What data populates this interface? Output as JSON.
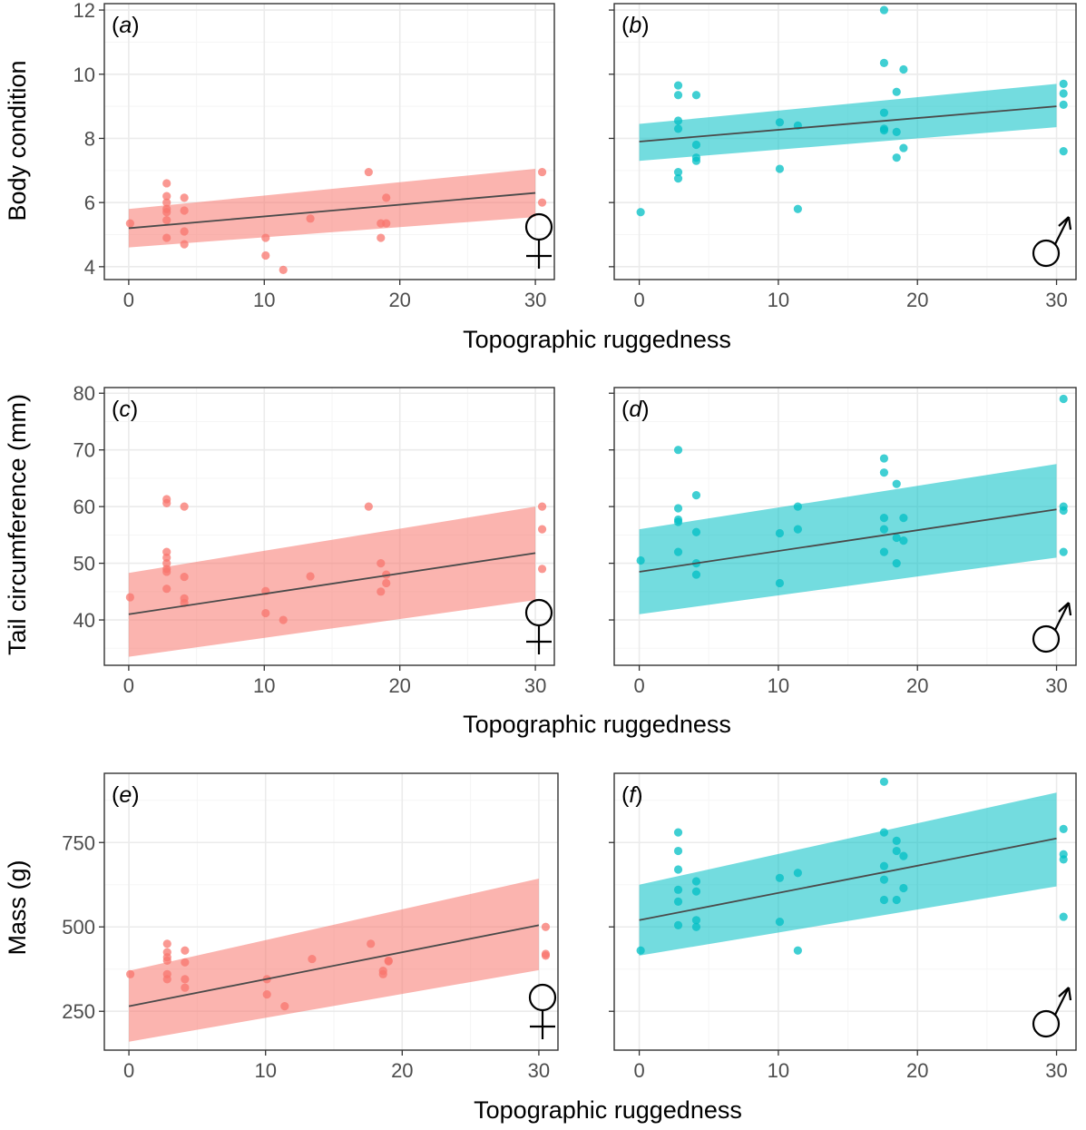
{
  "colors": {
    "female": "#F8766D",
    "male": "#00BFC4",
    "line": "#4a4a4a",
    "grid_major": "#ebebeb",
    "grid_minor": "#f5f5f5",
    "border": "#333333"
  },
  "rows": [
    {
      "ylabel": "Body condition",
      "xlabel": "Topographic ruggedness"
    },
    {
      "ylabel": "Tail circumference (mm)",
      "xlabel": "Topographic ruggedness"
    },
    {
      "ylabel": "Mass (g)",
      "xlabel": "Topographic ruggedness"
    }
  ],
  "chart_data": [
    {
      "type": "scatter",
      "panel": "a",
      "label_letter": "a",
      "sex": "female",
      "sex_symbol": "female-symbol-icon",
      "xlim": [
        -1.8,
        31.4
      ],
      "ylim": [
        3.6,
        12.2
      ],
      "xticks": [
        0,
        10,
        20,
        30
      ],
      "yticks": [
        4,
        6,
        8,
        10,
        12
      ],
      "points": [
        [
          0.1,
          5.35
        ],
        [
          2.8,
          6.6
        ],
        [
          2.8,
          6.2
        ],
        [
          2.8,
          6.0
        ],
        [
          2.8,
          5.8
        ],
        [
          2.8,
          5.7
        ],
        [
          2.8,
          5.45
        ],
        [
          2.8,
          4.9
        ],
        [
          4.1,
          6.15
        ],
        [
          4.1,
          5.75
        ],
        [
          4.1,
          5.1
        ],
        [
          4.1,
          4.7
        ],
        [
          10.1,
          4.9
        ],
        [
          10.1,
          4.35
        ],
        [
          11.4,
          3.9
        ],
        [
          13.4,
          5.5
        ],
        [
          17.7,
          6.95
        ],
        [
          18.6,
          4.9
        ],
        [
          18.6,
          5.35
        ],
        [
          19.0,
          6.15
        ],
        [
          19.0,
          5.35
        ],
        [
          30.5,
          6.95
        ],
        [
          30.5,
          6.0
        ]
      ],
      "fit": {
        "x": [
          0,
          30
        ],
        "y": [
          5.2,
          6.3
        ]
      },
      "band": {
        "lower": [
          4.6,
          5.55
        ],
        "upper": [
          5.8,
          7.05
        ]
      }
    },
    {
      "type": "scatter",
      "panel": "b",
      "label_letter": "b",
      "sex": "male",
      "sex_symbol": "male-symbol-icon",
      "xlim": [
        -1.8,
        31.4
      ],
      "ylim": [
        3.6,
        12.2
      ],
      "xticks": [
        0,
        10,
        20,
        30
      ],
      "yticks": [
        4,
        6,
        8,
        10,
        12
      ],
      "points": [
        [
          0.1,
          5.7
        ],
        [
          2.8,
          9.65
        ],
        [
          2.8,
          9.35
        ],
        [
          2.8,
          8.55
        ],
        [
          2.8,
          8.3
        ],
        [
          2.8,
          6.95
        ],
        [
          2.8,
          6.75
        ],
        [
          4.1,
          9.35
        ],
        [
          4.1,
          7.8
        ],
        [
          4.1,
          7.4
        ],
        [
          4.1,
          7.3
        ],
        [
          10.1,
          8.5
        ],
        [
          10.1,
          7.05
        ],
        [
          11.4,
          8.4
        ],
        [
          11.4,
          5.8
        ],
        [
          17.6,
          12.0
        ],
        [
          17.6,
          10.35
        ],
        [
          17.6,
          8.8
        ],
        [
          17.6,
          8.3
        ],
        [
          17.6,
          8.25
        ],
        [
          18.5,
          9.45
        ],
        [
          18.5,
          8.2
        ],
        [
          18.5,
          7.4
        ],
        [
          19.0,
          10.15
        ],
        [
          19.0,
          7.7
        ],
        [
          30.5,
          9.7
        ],
        [
          30.5,
          9.4
        ],
        [
          30.5,
          9.05
        ],
        [
          30.5,
          7.6
        ]
      ],
      "fit": {
        "x": [
          0,
          30
        ],
        "y": [
          7.9,
          9.0
        ]
      },
      "band": {
        "lower": [
          7.3,
          8.35
        ],
        "upper": [
          8.45,
          9.7
        ]
      }
    },
    {
      "type": "scatter",
      "panel": "c",
      "label_letter": "c",
      "sex": "female",
      "sex_symbol": "female-symbol-icon",
      "xlim": [
        -1.8,
        31.4
      ],
      "ylim": [
        32,
        81
      ],
      "xticks": [
        0,
        10,
        20,
        30
      ],
      "yticks": [
        40,
        50,
        60,
        70,
        80
      ],
      "points": [
        [
          0.1,
          44
        ],
        [
          2.8,
          61.3
        ],
        [
          2.8,
          60.6
        ],
        [
          2.8,
          52
        ],
        [
          2.8,
          51
        ],
        [
          2.8,
          50
        ],
        [
          2.8,
          49
        ],
        [
          2.8,
          48.5
        ],
        [
          2.8,
          45.5
        ],
        [
          4.1,
          60
        ],
        [
          4.1,
          47.6
        ],
        [
          4.1,
          43.8
        ],
        [
          4.1,
          43
        ],
        [
          10.1,
          45.1
        ],
        [
          10.1,
          41.2
        ],
        [
          11.4,
          40
        ],
        [
          13.4,
          47.7
        ],
        [
          17.7,
          60
        ],
        [
          18.6,
          50
        ],
        [
          18.6,
          45
        ],
        [
          19.0,
          48
        ],
        [
          19.0,
          46.5
        ],
        [
          30.5,
          60
        ],
        [
          30.5,
          56
        ],
        [
          30.5,
          49
        ]
      ],
      "fit": {
        "x": [
          0,
          30
        ],
        "y": [
          41,
          51.8
        ]
      },
      "band": {
        "lower": [
          33.5,
          43.5
        ],
        "upper": [
          48.3,
          60
        ]
      }
    },
    {
      "type": "scatter",
      "panel": "d",
      "label_letter": "d",
      "sex": "male",
      "sex_symbol": "male-symbol-icon",
      "xlim": [
        -1.8,
        31.4
      ],
      "ylim": [
        32,
        81
      ],
      "xticks": [
        0,
        10,
        20,
        30
      ],
      "yticks": [
        40,
        50,
        60,
        70,
        80
      ],
      "points": [
        [
          0.1,
          50.5
        ],
        [
          2.8,
          70
        ],
        [
          2.8,
          59.7
        ],
        [
          2.8,
          57.7
        ],
        [
          2.8,
          57.3
        ],
        [
          2.8,
          52
        ],
        [
          4.1,
          62
        ],
        [
          4.1,
          55.5
        ],
        [
          4.1,
          50
        ],
        [
          4.1,
          48
        ],
        [
          10.1,
          55.3
        ],
        [
          10.1,
          46.5
        ],
        [
          11.4,
          60
        ],
        [
          11.4,
          56
        ],
        [
          17.6,
          68.5
        ],
        [
          17.6,
          66
        ],
        [
          17.6,
          58
        ],
        [
          17.6,
          56
        ],
        [
          17.6,
          52
        ],
        [
          18.5,
          64
        ],
        [
          18.5,
          54.5
        ],
        [
          18.5,
          50
        ],
        [
          19.0,
          58
        ],
        [
          19.0,
          54
        ],
        [
          30.5,
          79
        ],
        [
          30.5,
          60
        ],
        [
          30.5,
          59.3
        ],
        [
          30.5,
          52
        ]
      ],
      "fit": {
        "x": [
          0,
          30
        ],
        "y": [
          48.5,
          59.5
        ]
      },
      "band": {
        "lower": [
          41,
          51
        ],
        "upper": [
          56,
          67.5
        ]
      }
    },
    {
      "type": "scatter",
      "panel": "e",
      "label_letter": "e",
      "sex": "female",
      "sex_symbol": "female-symbol-icon",
      "xlim": [
        -1.8,
        31.4
      ],
      "ylim": [
        135,
        955
      ],
      "xticks": [
        0,
        10,
        20,
        30
      ],
      "yticks": [
        250,
        500,
        750
      ],
      "points": [
        [
          0.1,
          360
        ],
        [
          2.8,
          450
        ],
        [
          2.8,
          425
        ],
        [
          2.8,
          410
        ],
        [
          2.8,
          400
        ],
        [
          2.8,
          360
        ],
        [
          2.8,
          345
        ],
        [
          4.1,
          430
        ],
        [
          4.1,
          395
        ],
        [
          4.1,
          345
        ],
        [
          4.1,
          320
        ],
        [
          10.1,
          345
        ],
        [
          10.1,
          300
        ],
        [
          11.4,
          265
        ],
        [
          13.4,
          405
        ],
        [
          17.7,
          450
        ],
        [
          18.6,
          370
        ],
        [
          18.6,
          360
        ],
        [
          19.0,
          400
        ],
        [
          19.0,
          398
        ],
        [
          30.5,
          500
        ],
        [
          30.5,
          420
        ],
        [
          30.5,
          415
        ]
      ],
      "fit": {
        "x": [
          0,
          30
        ],
        "y": [
          265,
          505
        ]
      },
      "band": {
        "lower": [
          160,
          372
        ],
        "upper": [
          370,
          643
        ]
      }
    },
    {
      "type": "scatter",
      "panel": "f",
      "label_letter": "f",
      "sex": "male",
      "sex_symbol": "male-symbol-icon",
      "xlim": [
        -1.8,
        31.4
      ],
      "ylim": [
        135,
        955
      ],
      "xticks": [
        0,
        10,
        20,
        30
      ],
      "yticks": [
        250,
        500,
        750
      ],
      "points": [
        [
          0.1,
          430
        ],
        [
          2.8,
          780
        ],
        [
          2.8,
          725
        ],
        [
          2.8,
          670
        ],
        [
          2.8,
          610
        ],
        [
          2.8,
          575
        ],
        [
          2.8,
          505
        ],
        [
          4.1,
          635
        ],
        [
          4.1,
          605
        ],
        [
          4.1,
          520
        ],
        [
          4.1,
          500
        ],
        [
          10.1,
          645
        ],
        [
          10.1,
          515
        ],
        [
          11.4,
          660
        ],
        [
          11.4,
          430
        ],
        [
          17.6,
          930
        ],
        [
          17.6,
          780
        ],
        [
          17.6,
          680
        ],
        [
          17.6,
          640
        ],
        [
          17.6,
          580
        ],
        [
          18.5,
          755
        ],
        [
          18.5,
          725
        ],
        [
          18.5,
          580
        ],
        [
          19.0,
          710
        ],
        [
          19.0,
          615
        ],
        [
          30.5,
          790
        ],
        [
          30.5,
          715
        ],
        [
          30.5,
          700
        ],
        [
          30.5,
          530
        ]
      ],
      "fit": {
        "x": [
          0,
          30
        ],
        "y": [
          520,
          762
        ]
      },
      "band": {
        "lower": [
          415,
          620
        ],
        "upper": [
          625,
          898
        ]
      }
    }
  ]
}
